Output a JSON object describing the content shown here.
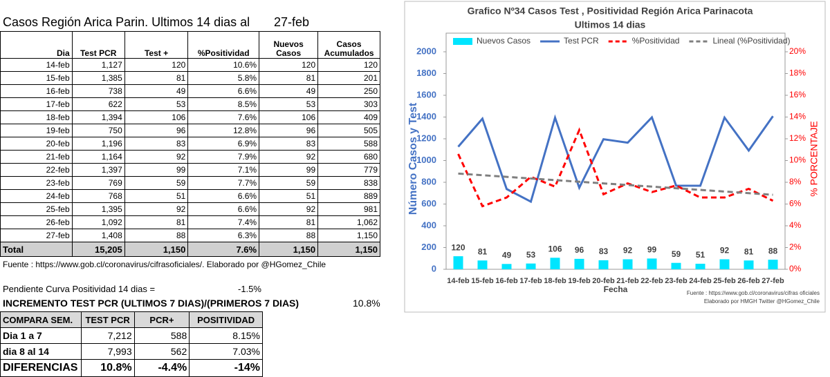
{
  "sheet": {
    "title": "Casos Región Arica Parin. Ultimos 14 dias al",
    "date": "27-feb",
    "headers": [
      "Dia",
      "Test PCR",
      "Test +",
      "%Positividad",
      "Nuevos Casos",
      "Casos Acumulados"
    ],
    "rows": [
      [
        "14-feb",
        "1,127",
        "120",
        "10.6%",
        "120",
        "120"
      ],
      [
        "15-feb",
        "1,385",
        "81",
        "5.8%",
        "81",
        "201"
      ],
      [
        "16-feb",
        "738",
        "49",
        "6.6%",
        "49",
        "250"
      ],
      [
        "17-feb",
        "622",
        "53",
        "8.5%",
        "53",
        "303"
      ],
      [
        "18-feb",
        "1,394",
        "106",
        "7.6%",
        "106",
        "409"
      ],
      [
        "19-feb",
        "750",
        "96",
        "12.8%",
        "96",
        "505"
      ],
      [
        "20-feb",
        "1,196",
        "83",
        "6.9%",
        "83",
        "588"
      ],
      [
        "21-feb",
        "1,164",
        "92",
        "7.9%",
        "92",
        "680"
      ],
      [
        "22-feb",
        "1,397",
        "99",
        "7.1%",
        "99",
        "779"
      ],
      [
        "23-feb",
        "769",
        "59",
        "7.7%",
        "59",
        "838"
      ],
      [
        "24-feb",
        "768",
        "51",
        "6.6%",
        "51",
        "889"
      ],
      [
        "25-feb",
        "1,395",
        "92",
        "6.6%",
        "92",
        "981"
      ],
      [
        "26-feb",
        "1,092",
        "81",
        "7.4%",
        "81",
        "1,062"
      ],
      [
        "27-feb",
        "1,408",
        "88",
        "6.3%",
        "88",
        "1,150"
      ]
    ],
    "total": [
      "Total",
      "15,205",
      "1,150",
      "7.6%",
      "1,150",
      "1,150"
    ],
    "source": "Fuente : https://www.gob.cl/coronavirus/cifrasoficiales/.    Elaborado por  @HGomez_Chile",
    "slope_label": "Pendiente Curva Positividad 14 dias =",
    "slope_value": "-1.5%",
    "increase_label": "INCREMENTO TEST PCR (ULTIMOS 7 DIAS)/(PRIMEROS 7 DIAS)",
    "increase_value": "10.8%",
    "compare_headers": [
      "COMPARA SEM.",
      "TEST PCR",
      "PCR+",
      "POSITIVIDAD"
    ],
    "compare_rows": [
      [
        "Dia 1 a 7",
        "7,212",
        "588",
        "8.15%"
      ],
      [
        "dia 8 al 14",
        "7,993",
        "562",
        "7.03%"
      ],
      [
        "DIFERENCIAS",
        "10.8%",
        "-4.4%",
        "-14%"
      ]
    ]
  },
  "chart_data": {
    "type": "combo",
    "title": "Grafico Nº34  Casos Test ,  Positividad Región Arica Parinacota",
    "subtitle": "Ultimos 14 dias",
    "x_label": "Fecha",
    "y_label": "Número Casos y Test",
    "y2_label": "% PORCENTAJE",
    "footnote": [
      "Fuente  : https://www.gob.cl/coronavirus/cifras oficiales",
      "Elaborado por HMGH  Twitter @HGomez_Chile"
    ],
    "categories": [
      "14-feb",
      "15-feb",
      "16-feb",
      "17-feb",
      "18-feb",
      "19-feb",
      "20-feb",
      "21-feb",
      "22-feb",
      "23-feb",
      "24-feb",
      "25-feb",
      "26-feb",
      "27-feb"
    ],
    "series": [
      {
        "name": "Nuevos Casos",
        "type": "bar",
        "color": "#00e5ff",
        "values": [
          120,
          81,
          49,
          53,
          106,
          96,
          83,
          92,
          99,
          59,
          51,
          92,
          81,
          88
        ]
      },
      {
        "name": "Test PCR",
        "type": "line",
        "color": "#4472c4",
        "values": [
          1127,
          1385,
          738,
          622,
          1394,
          750,
          1196,
          1164,
          1397,
          769,
          768,
          1395,
          1092,
          1408
        ]
      },
      {
        "name": "%Positividad",
        "type": "line",
        "dashed": true,
        "axis": "y2",
        "color": "#ff0000",
        "values": [
          10.6,
          5.8,
          6.6,
          8.5,
          7.6,
          12.8,
          6.9,
          7.9,
          7.1,
          7.7,
          6.6,
          6.6,
          7.4,
          6.3
        ]
      },
      {
        "name": "Lineal (%Positividad)",
        "type": "line",
        "dashed": true,
        "axis": "y2",
        "color": "#7f7f7f",
        "values": [
          8.8,
          8.65,
          8.5,
          8.35,
          8.2,
          8.05,
          7.9,
          7.75,
          7.6,
          7.45,
          7.3,
          7.15,
          7.0,
          6.85
        ]
      }
    ],
    "ylim": [
      0,
      2000
    ],
    "yticks": [
      0,
      200,
      400,
      600,
      800,
      1000,
      1200,
      1400,
      1600,
      1800,
      2000
    ],
    "y2lim": [
      0,
      20
    ],
    "y2ticks": [
      {
        "value": 0,
        "label": "0%"
      },
      {
        "value": 2,
        "label": "2%"
      },
      {
        "value": 4,
        "label": "4%"
      },
      {
        "value": 6,
        "label": "6%"
      },
      {
        "value": 8,
        "label": "8%"
      },
      {
        "value": 10,
        "label": "10%"
      },
      {
        "value": 12,
        "label": "12%"
      },
      {
        "value": 14,
        "label": "14%"
      },
      {
        "value": 16,
        "label": "16%"
      },
      {
        "value": 18,
        "label": "18%"
      },
      {
        "value": 20,
        "label": "20%"
      }
    ],
    "grid": false,
    "legend": "top"
  }
}
